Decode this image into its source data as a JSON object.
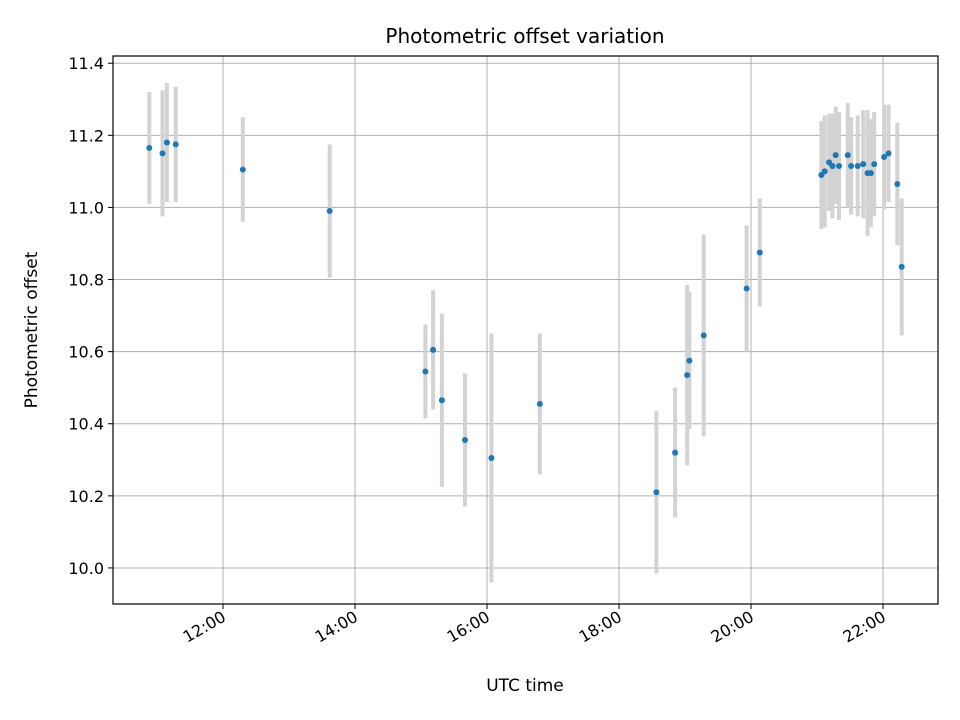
{
  "chart_data": {
    "type": "scatter",
    "title": "Photometric offset variation",
    "xlabel": "UTC time",
    "ylabel": "Photometric offset",
    "x_unit": "hours UTC",
    "xlim": [
      "10:20",
      "22:50"
    ],
    "ylim": [
      9.9,
      11.42
    ],
    "x_ticks": [
      "12:00",
      "14:00",
      "16:00",
      "18:00",
      "20:00",
      "22:00"
    ],
    "y_ticks": [
      "10.0",
      "10.2",
      "10.4",
      "10.6",
      "10.8",
      "11.0",
      "11.2",
      "11.4"
    ],
    "grid": true,
    "colors": {
      "points": "#1f77b4",
      "errorbars": "#d3d3d3",
      "grid": "#b0b0b0"
    },
    "points": [
      {
        "x": "10:53",
        "y": 11.165,
        "err": 0.155
      },
      {
        "x": "11:05",
        "y": 11.15,
        "err": 0.175
      },
      {
        "x": "11:09",
        "y": 11.18,
        "err": 0.165
      },
      {
        "x": "11:17",
        "y": 11.175,
        "err": 0.16
      },
      {
        "x": "12:18",
        "y": 11.105,
        "err": 0.145
      },
      {
        "x": "13:37",
        "y": 10.99,
        "err": 0.185
      },
      {
        "x": "15:04",
        "y": 10.545,
        "err": 0.13
      },
      {
        "x": "15:11",
        "y": 10.605,
        "err": 0.165
      },
      {
        "x": "15:19",
        "y": 10.465,
        "err": 0.24
      },
      {
        "x": "15:40",
        "y": 10.355,
        "err": 0.185
      },
      {
        "x": "16:04",
        "y": 10.305,
        "err": 0.345
      },
      {
        "x": "16:48",
        "y": 10.455,
        "err": 0.195
      },
      {
        "x": "18:34",
        "y": 10.21,
        "err": 0.225
      },
      {
        "x": "18:51",
        "y": 10.32,
        "err": 0.18
      },
      {
        "x": "19:02",
        "y": 10.535,
        "err": 0.25
      },
      {
        "x": "19:04",
        "y": 10.575,
        "err": 0.19
      },
      {
        "x": "19:17",
        "y": 10.645,
        "err": 0.28
      },
      {
        "x": "19:56",
        "y": 10.775,
        "err": 0.175
      },
      {
        "x": "20:08",
        "y": 10.875,
        "err": 0.15
      },
      {
        "x": "21:04",
        "y": 11.09,
        "err": 0.15
      },
      {
        "x": "21:07",
        "y": 11.1,
        "err": 0.155
      },
      {
        "x": "21:11",
        "y": 11.125,
        "err": 0.135
      },
      {
        "x": "21:14",
        "y": 11.115,
        "err": 0.145
      },
      {
        "x": "21:17",
        "y": 11.145,
        "err": 0.135
      },
      {
        "x": "21:20",
        "y": 11.115,
        "err": 0.15
      },
      {
        "x": "21:28",
        "y": 11.145,
        "err": 0.145
      },
      {
        "x": "21:31",
        "y": 11.115,
        "err": 0.135
      },
      {
        "x": "21:37",
        "y": 11.115,
        "err": 0.14
      },
      {
        "x": "21:42",
        "y": 11.12,
        "err": 0.15
      },
      {
        "x": "21:46",
        "y": 11.095,
        "err": 0.175
      },
      {
        "x": "21:49",
        "y": 11.095,
        "err": 0.15
      },
      {
        "x": "21:52",
        "y": 11.12,
        "err": 0.145
      },
      {
        "x": "22:01",
        "y": 11.14,
        "err": 0.145
      },
      {
        "x": "22:05",
        "y": 11.15,
        "err": 0.135
      },
      {
        "x": "22:13",
        "y": 11.065,
        "err": 0.17
      },
      {
        "x": "22:17",
        "y": 10.835,
        "err": 0.19
      }
    ]
  }
}
